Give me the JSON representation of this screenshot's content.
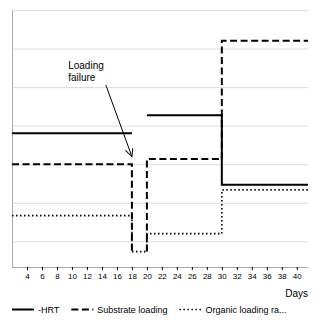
{
  "chart_data": {
    "type": "line",
    "x_label": "Days",
    "xlim": [
      2,
      41.5
    ],
    "xticks": [
      4,
      6,
      8,
      10,
      12,
      14,
      16,
      18,
      20,
      22,
      24,
      26,
      28,
      30,
      32,
      34,
      36,
      38,
      40
    ],
    "ylim": [
      0.0,
      1.0
    ],
    "yticks": [
      0.1,
      0.25,
      0.4,
      0.55,
      0.7,
      0.85,
      1.0
    ],
    "grid": true,
    "tick_labels": "x",
    "legend": "bottom",
    "series": [
      {
        "name": "-HRT",
        "color": "black",
        "line_style": "solid",
        "x": [
          2,
          18,
          null,
          20,
          30,
          30,
          41.5
        ],
        "values": [
          0.52,
          0.52,
          null,
          0.59,
          0.59,
          0.32,
          0.32
        ]
      },
      {
        "name": "Substrate loading",
        "color": "black",
        "line_style": "dashed",
        "x": [
          2,
          18,
          18,
          null,
          20,
          20,
          30,
          30,
          41.5
        ],
        "values": [
          0.4,
          0.4,
          0.06,
          null,
          0.06,
          0.42,
          0.42,
          0.88,
          0.88
        ]
      },
      {
        "name": "Organic loading ra...",
        "color": "black",
        "line_style": "dotted",
        "x": [
          2,
          18,
          18,
          20,
          20,
          30,
          30,
          41.5
        ],
        "values": [
          0.2,
          0.2,
          0.06,
          0.06,
          0.13,
          0.13,
          0.3,
          0.3
        ]
      }
    ],
    "annotations": [
      {
        "text": "Loading\nfailure",
        "x": 9.5,
        "y": 0.76,
        "arrow_x": 18.0,
        "arrow_y": 0.43
      }
    ]
  }
}
